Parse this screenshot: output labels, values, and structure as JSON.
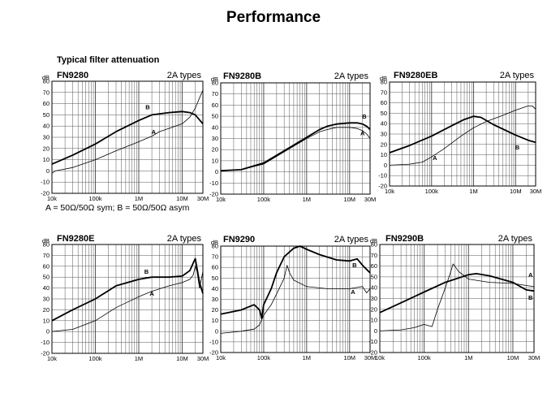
{
  "page": {
    "title": "Performance",
    "subtitle": "Typical filter attenuation",
    "legend_note": "A = 50Ω/50Ω sym; B = 50Ω/50Ω asym"
  },
  "chart_data": [
    {
      "type": "line",
      "title": "FN9280",
      "type_label": "2A types",
      "ylabel": "dB",
      "x_scale": "log",
      "xlim": [
        10000,
        30000000
      ],
      "ylim": [
        -20,
        80
      ],
      "x_ticks": [
        "10k",
        "100k",
        "1M",
        "10M",
        "30M"
      ],
      "y_ticks": [
        "80",
        "70",
        "60",
        "50",
        "40",
        "30",
        "20",
        "10",
        "0",
        "-10",
        "-20"
      ],
      "grid": true,
      "series": [
        {
          "name": "A",
          "x": [
            10000,
            12000,
            30000,
            100000,
            300000,
            1000000,
            2000000,
            3000000,
            5000000,
            10000000,
            15000000,
            20000000,
            25000000,
            30000000
          ],
          "y": [
            -2,
            0,
            3,
            10,
            18,
            26,
            31,
            35,
            38,
            42,
            48,
            56,
            65,
            72
          ]
        },
        {
          "name": "B",
          "x": [
            10000,
            30000,
            100000,
            300000,
            1000000,
            2000000,
            5000000,
            10000000,
            15000000,
            20000000,
            30000000
          ],
          "y": [
            6,
            14,
            24,
            35,
            45,
            50,
            52,
            53,
            52,
            50,
            42
          ]
        }
      ],
      "labels": [
        {
          "text": "B",
          "x": 1600000,
          "y": 55
        },
        {
          "text": "A",
          "x": 2200000,
          "y": 33
        }
      ]
    },
    {
      "type": "line",
      "title": "FN9280B",
      "type_label": "2A types",
      "ylabel": "dB",
      "x_scale": "log",
      "xlim": [
        10000,
        30000000
      ],
      "ylim": [
        -20,
        80
      ],
      "x_ticks": [
        "10k",
        "100k",
        "1M",
        "10M",
        "30M"
      ],
      "y_ticks": [
        "80",
        "70",
        "60",
        "50",
        "40",
        "30",
        "20",
        "10",
        "0",
        "-10",
        "-20"
      ],
      "grid": true,
      "series": [
        {
          "name": "A",
          "x": [
            10000,
            30000,
            100000,
            300000,
            1000000,
            2000000,
            3000000,
            5000000,
            10000000,
            15000000,
            20000000,
            25000000,
            30000000
          ],
          "y": [
            1,
            2,
            7,
            18,
            30,
            36,
            38,
            40,
            40,
            39,
            37,
            34,
            30
          ]
        },
        {
          "name": "B",
          "x": [
            10000,
            30000,
            100000,
            300000,
            1000000,
            2000000,
            3000000,
            5000000,
            10000000,
            15000000,
            20000000,
            25000000,
            30000000
          ],
          "y": [
            1,
            2,
            8,
            19,
            31,
            38,
            41,
            43,
            44,
            44,
            43,
            41,
            38
          ]
        }
      ],
      "labels": [
        {
          "text": "B",
          "x": 22000000,
          "y": 48
        },
        {
          "text": "A",
          "x": 20000000,
          "y": 33
        }
      ]
    },
    {
      "type": "line",
      "title": "FN9280EB",
      "type_label": "2A types",
      "ylabel": "dB",
      "x_scale": "log",
      "xlim": [
        10000,
        30000000
      ],
      "ylim": [
        -20,
        80
      ],
      "x_ticks": [
        "10k",
        "100k",
        "1M",
        "10M",
        "30M"
      ],
      "y_ticks": [
        "80",
        "70",
        "60",
        "50",
        "40",
        "30",
        "20",
        "10",
        "0",
        "-10",
        "-20"
      ],
      "grid": true,
      "series": [
        {
          "name": "A",
          "x": [
            10000,
            30000,
            60000,
            100000,
            200000,
            500000,
            1000000,
            2000000,
            5000000,
            10000000,
            20000000,
            25000000,
            30000000
          ],
          "y": [
            0,
            1,
            3,
            8,
            16,
            28,
            36,
            42,
            48,
            53,
            57,
            57,
            54
          ]
        },
        {
          "name": "B",
          "x": [
            10000,
            30000,
            100000,
            300000,
            600000,
            1000000,
            1500000,
            3000000,
            10000000,
            20000000,
            30000000
          ],
          "y": [
            12,
            19,
            28,
            38,
            44,
            47,
            46,
            39,
            29,
            24,
            22
          ]
        }
      ],
      "labels": [
        {
          "text": "B",
          "x": 11000000,
          "y": 15,
          "ref": "low"
        },
        {
          "text": "A",
          "x": 120000,
          "y": 5
        }
      ]
    },
    {
      "type": "line",
      "title": "FN9280E",
      "type_label": "2A types",
      "ylabel": "dB",
      "x_scale": "log",
      "xlim": [
        10000,
        30000000
      ],
      "ylim": [
        -20,
        80
      ],
      "x_ticks": [
        "10k",
        "100k",
        "1M",
        "10M",
        "30M"
      ],
      "y_ticks": [
        "80",
        "70",
        "60",
        "50",
        "40",
        "30",
        "20",
        "10",
        "0",
        "-10",
        "-20"
      ],
      "grid": true,
      "series": [
        {
          "name": "A",
          "x": [
            10000,
            30000,
            100000,
            300000,
            1000000,
            2000000,
            5000000,
            10000000,
            15000000,
            18000000,
            20000000,
            22000000,
            25000000,
            30000000
          ],
          "y": [
            0,
            2,
            10,
            22,
            32,
            37,
            42,
            45,
            48,
            52,
            60,
            55,
            40,
            55
          ]
        },
        {
          "name": "B",
          "x": [
            10000,
            30000,
            100000,
            300000,
            1000000,
            2000000,
            5000000,
            10000000,
            15000000,
            18000000,
            20000000,
            22000000,
            25000000,
            30000000
          ],
          "y": [
            10,
            20,
            30,
            42,
            48,
            50,
            50,
            51,
            56,
            63,
            67,
            58,
            45,
            35
          ]
        }
      ],
      "labels": [
        {
          "text": "B",
          "x": 1500000,
          "y": 53
        },
        {
          "text": "A",
          "x": 2000000,
          "y": 33
        }
      ]
    },
    {
      "type": "line",
      "title": "FN9290",
      "type_label": "2A types",
      "ylabel": "dB",
      "x_scale": "log",
      "xlim": [
        10000,
        30000000
      ],
      "ylim": [
        -20,
        80
      ],
      "x_ticks": [
        "10k",
        "100k",
        "1M",
        "10M",
        "30M"
      ],
      "y_ticks": [
        "80",
        "70",
        "60",
        "50",
        "40",
        "30",
        "20",
        "10",
        "0",
        "-10",
        "-20"
      ],
      "grid": true,
      "series": [
        {
          "name": "A",
          "x": [
            10000,
            30000,
            60000,
            80000,
            100000,
            150000,
            200000,
            300000,
            350000,
            400000,
            500000,
            1000000,
            3000000,
            10000000,
            20000000,
            25000000,
            30000000
          ],
          "y": [
            -2,
            0,
            2,
            6,
            15,
            25,
            35,
            50,
            62,
            55,
            48,
            42,
            40,
            40,
            42,
            36,
            40
          ]
        },
        {
          "name": "B",
          "x": [
            10000,
            30000,
            60000,
            80000,
            90000,
            100000,
            150000,
            200000,
            300000,
            500000,
            700000,
            1000000,
            2000000,
            5000000,
            10000000,
            15000000,
            20000000,
            25000000,
            30000000
          ],
          "y": [
            16,
            20,
            25,
            20,
            12,
            25,
            40,
            55,
            70,
            78,
            80,
            77,
            72,
            67,
            66,
            68,
            62,
            58,
            55
          ]
        }
      ],
      "labels": [
        {
          "text": "B",
          "x": 13000000,
          "y": 60
        },
        {
          "text": "A",
          "x": 12000000,
          "y": 35
        }
      ]
    },
    {
      "type": "line",
      "title": "FN9290B",
      "type_label": "2A types",
      "ylabel": "dB",
      "x_scale": "log",
      "xlim": [
        10000,
        30000000
      ],
      "ylim": [
        -20,
        80
      ],
      "x_ticks": [
        "10k",
        "100k",
        "1M",
        "10M",
        "30M"
      ],
      "y_ticks": [
        "80",
        "70",
        "60",
        "50",
        "40",
        "30",
        "20",
        "10",
        "0",
        "-10",
        "-20"
      ],
      "grid": true,
      "series": [
        {
          "name": "A",
          "x": [
            10000,
            30000,
            60000,
            100000,
            150000,
            200000,
            300000,
            400000,
            450000,
            600000,
            1000000,
            3000000,
            10000000,
            20000000,
            30000000
          ],
          "y": [
            0,
            1,
            3,
            6,
            4,
            20,
            40,
            55,
            62,
            55,
            48,
            45,
            44,
            42,
            41
          ]
        },
        {
          "name": "B",
          "x": [
            10000,
            30000,
            100000,
            300000,
            1000000,
            1500000,
            3000000,
            10000000,
            20000000,
            30000000
          ],
          "y": [
            17,
            26,
            36,
            45,
            52,
            53,
            51,
            45,
            38,
            37
          ]
        }
      ],
      "labels": [
        {
          "text": "A",
          "x": 25000000,
          "y": 50
        },
        {
          "text": "B",
          "x": 25000000,
          "y": 29
        }
      ]
    }
  ]
}
